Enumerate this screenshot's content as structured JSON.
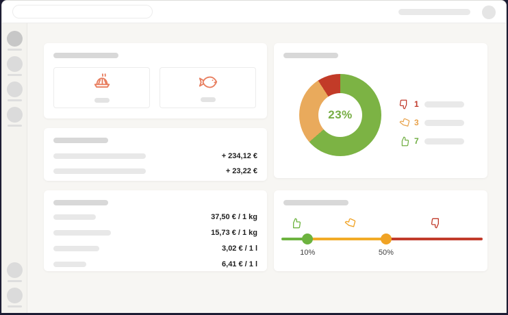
{
  "colors": {
    "frame": "#1c1c33",
    "coral_icon": "#e87e5f",
    "green": "#7cb344",
    "amber": "#e9aa5c",
    "red": "#c23b28",
    "slider_green": "#6db33f",
    "slider_yellow": "#f2ab27",
    "slider_red": "#c13b2b",
    "donut_center_green": "#76ad43"
  },
  "cards": {
    "categories": {
      "tiles": [
        {
          "icon": "meal-icon"
        },
        {
          "icon": "fish-icon"
        }
      ]
    },
    "balance": {
      "rows": [
        {
          "amount": "+ 234,12 €"
        },
        {
          "amount": "+ 23,22 €"
        }
      ]
    },
    "prices": {
      "rows": [
        {
          "amount": "37,50 € / 1 kg"
        },
        {
          "amount": "15,73 € / 1 kg"
        },
        {
          "amount": "3,02 € / 1 l"
        },
        {
          "amount": "6,41 € / 1 l"
        }
      ]
    },
    "rating": {
      "center_label": "23%",
      "legend": [
        {
          "icon": "thumbs-down-icon",
          "count": "1",
          "color": "#c0392b"
        },
        {
          "icon": "thumb-tilted-icon",
          "count": "3",
          "color": "#e8a24b"
        },
        {
          "icon": "thumbs-up-icon",
          "count": "7",
          "color": "#70ae43"
        }
      ],
      "chart_data": {
        "type": "donut",
        "labels": [
          "thumbs-up",
          "thumb-tilted",
          "thumbs-down"
        ],
        "values": [
          7,
          3,
          1
        ],
        "colors": [
          "#7cb344",
          "#e9aa5c",
          "#c23b28"
        ],
        "center_label": "23%",
        "start_angle_deg": 0,
        "direction": "clockwise"
      }
    },
    "slider": {
      "handles": [
        {
          "label": "10%",
          "pos_pct": 13,
          "color": "#6db33f"
        },
        {
          "label": "50%",
          "pos_pct": 52,
          "color": "#f0a325"
        }
      ],
      "segments": [
        {
          "color": "#6db33f",
          "from_pct": 0,
          "to_pct": 13
        },
        {
          "color": "#f2ab27",
          "from_pct": 13,
          "to_pct": 52
        },
        {
          "color": "#c13b2b",
          "from_pct": 52,
          "to_pct": 100
        }
      ],
      "icons": [
        {
          "name": "thumbs-up-icon",
          "pos_pct": 7,
          "color": "#6db33f"
        },
        {
          "name": "thumb-tilted-icon",
          "pos_pct": 34,
          "color": "#f0a325"
        },
        {
          "name": "thumbs-down-icon",
          "pos_pct": 77,
          "color": "#c13b2b"
        }
      ]
    }
  }
}
